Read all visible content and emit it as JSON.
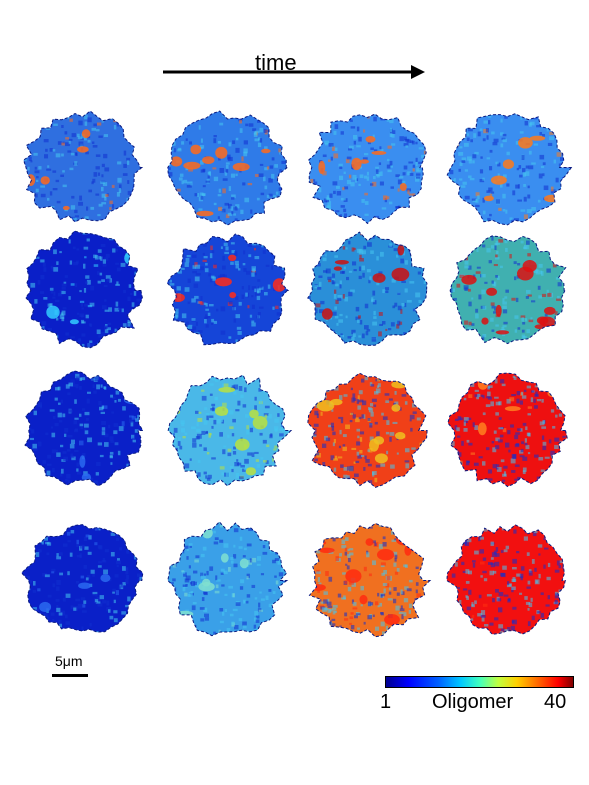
{
  "figure": {
    "time_label": "time",
    "scale_bar_label": "5μm",
    "colorbar": {
      "min_label": "1",
      "title": "Oligomer",
      "max_label": "40"
    },
    "rows": [
      {
        "panels": [
          {
            "base": "#2f6fe0",
            "spots": "#ff6a1a",
            "density": 0.09,
            "intensity": 0.35
          },
          {
            "base": "#2f7be8",
            "spots": "#ff6a1a",
            "density": 0.14,
            "intensity": 0.45
          },
          {
            "base": "#3a8ef0",
            "spots": "#ff6a1a",
            "density": 0.12,
            "intensity": 0.5
          },
          {
            "base": "#3a8ef0",
            "spots": "#ff7a1a",
            "density": 0.1,
            "intensity": 0.5
          }
        ]
      },
      {
        "panels": [
          {
            "base": "#0a1fc8",
            "spots": "#33ccff",
            "density": 0.05,
            "intensity": 0.1
          },
          {
            "base": "#1545d8",
            "spots": "#ff2a1a",
            "density": 0.08,
            "intensity": 0.3
          },
          {
            "base": "#2a8fd8",
            "spots": "#cc1010",
            "density": 0.1,
            "intensity": 0.55
          },
          {
            "base": "#40b0b0",
            "spots": "#dd1010",
            "density": 0.2,
            "intensity": 0.75
          }
        ]
      },
      {
        "panels": [
          {
            "base": "#0a20c8",
            "spots": "#2a6af0",
            "density": 0.05,
            "intensity": 0.05
          },
          {
            "base": "#4ab8e8",
            "spots": "#b8e040",
            "density": 0.12,
            "intensity": 0.4
          },
          {
            "base": "#f04018",
            "spots": "#f0c020",
            "density": 0.15,
            "intensity": 0.75
          },
          {
            "base": "#ee1010",
            "spots": "#ff8020",
            "density": 0.06,
            "intensity": 0.95
          }
        ]
      },
      {
        "panels": [
          {
            "base": "#0a20c8",
            "spots": "#2a6af0",
            "density": 0.05,
            "intensity": 0.05
          },
          {
            "base": "#3aa0e8",
            "spots": "#80e0d0",
            "density": 0.1,
            "intensity": 0.35
          },
          {
            "base": "#f07020",
            "spots": "#ff2a10",
            "density": 0.18,
            "intensity": 0.7
          },
          {
            "base": "#f21010",
            "spots": "#ff3010",
            "density": 0.02,
            "intensity": 1.0
          }
        ]
      }
    ]
  }
}
